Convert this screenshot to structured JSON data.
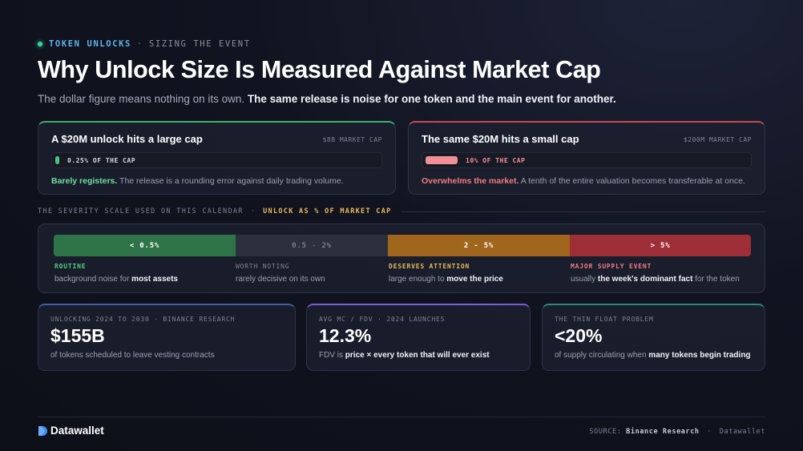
{
  "eyebrow": {
    "tag": "TOKEN UNLOCKS",
    "separator": "·",
    "section": "SIZING THE EVENT"
  },
  "title": "Why Unlock Size Is Measured Against Market Cap",
  "subtitle": {
    "lead": "The dollar figure means nothing on its own.",
    "emphasis": "The same release is noise for one token and the main event for another."
  },
  "comparison": {
    "left": {
      "title": "A $20M unlock hits a large cap",
      "cap_label": "$8B MARKET CAP",
      "bar_label": "0.25% OF THE CAP",
      "fill_fraction": 0.0025,
      "verdict": "Barely registers.",
      "description": "The release is a rounding error against daily trading volume.",
      "accent": "#4cc27f"
    },
    "right": {
      "title": "The same $20M hits a small cap",
      "cap_label": "$200M MARKET CAP",
      "bar_label": "10% OF THE CAP",
      "fill_fraction": 0.1,
      "verdict": "Overwhelms the market.",
      "description": "A tenth of the entire valuation becomes transferable at once.",
      "accent": "#f09095"
    }
  },
  "severity": {
    "heading": "THE SEVERITY SCALE USED ON THIS CALENDAR",
    "separator": "·",
    "metric": "UNLOCK AS % OF MARKET CAP",
    "segments": [
      {
        "range": "< 0.5%",
        "name": "ROUTINE",
        "desc": "background noise for ",
        "desc_bold": "most assets",
        "desc_after": "",
        "color": "#2e7448"
      },
      {
        "range": "0.5 - 2%",
        "name": "WORTH NOTING",
        "desc": "rarely decisive on its own",
        "desc_bold": "",
        "desc_after": "",
        "color": "#2c303d"
      },
      {
        "range": "2 - 5%",
        "name": "DESERVES ATTENTION",
        "desc": "large enough to ",
        "desc_bold": "move the price",
        "desc_after": "",
        "color": "#a1661e"
      },
      {
        "range": "> 5%",
        "name": "MAJOR SUPPLY EVENT",
        "desc": "usually ",
        "desc_bold": "the week's dominant fact",
        "desc_after": " for the token",
        "color": "#9e2f38"
      }
    ]
  },
  "stats": [
    {
      "kicker": "UNLOCKING 2024 TO 2030 · BINANCE RESEARCH",
      "value": "$155B",
      "desc": "of tokens scheduled to leave vesting contracts",
      "desc_bold": "",
      "desc_after": ""
    },
    {
      "kicker": "AVG MC / FDV · 2024 LAUNCHES",
      "value": "12.3%",
      "desc": "FDV is ",
      "desc_bold": "price × every token that will ever exist",
      "desc_after": ""
    },
    {
      "kicker": "THE THIN FLOAT PROBLEM",
      "value": "<20%",
      "desc": "of supply circulating when ",
      "desc_bold": "many tokens begin trading",
      "desc_after": ""
    }
  ],
  "footer": {
    "brand": "Datawallet",
    "source_label": "SOURCE:",
    "source": "Binance Research",
    "separator": "·",
    "publisher": "Datawallet"
  },
  "icons": {
    "status_dot": "status-dot-icon",
    "brand_logo": "datawallet-logo-icon"
  }
}
